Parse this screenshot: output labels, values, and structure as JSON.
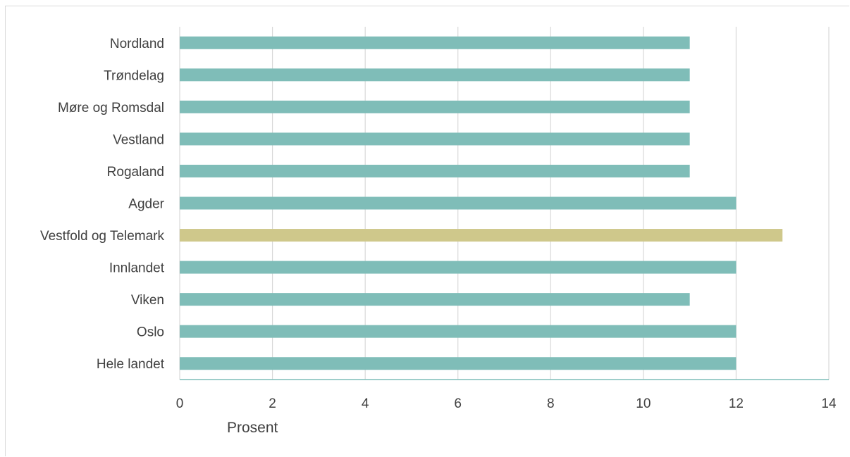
{
  "chart_data": {
    "type": "bar",
    "orientation": "horizontal",
    "title": "",
    "xlabel": "Prosent",
    "ylabel": "",
    "categories": [
      "Nordland",
      "Trøndelag",
      "Møre og Romsdal",
      "Vestland",
      "Rogaland",
      "Agder",
      "Vestfold og Telemark",
      "Innlandet",
      "Viken",
      "Oslo",
      "Hele landet"
    ],
    "values": [
      11,
      11,
      11,
      11,
      11,
      12,
      13,
      12,
      11,
      12,
      12
    ],
    "xlim": [
      0,
      14
    ],
    "xticks": [
      "0",
      "2",
      "4",
      "6",
      "8",
      "10",
      "12",
      "14"
    ],
    "grid": "vertical",
    "legend": "none",
    "colors": {
      "default": "#7fbdb8",
      "highlight": "#cfc88b",
      "highlight_category": "Vestfold og Telemark",
      "gridline": "#d9d9d9",
      "axis": "#7fbdb8"
    }
  }
}
